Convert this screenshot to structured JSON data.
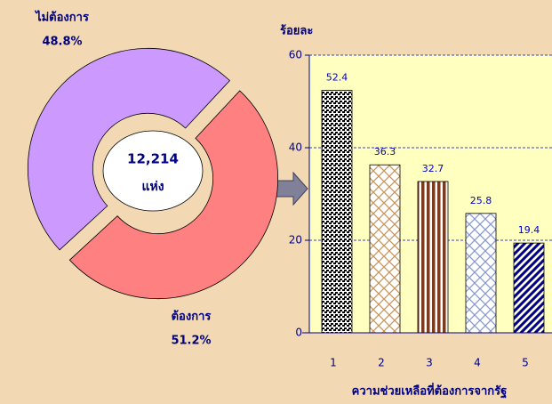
{
  "chart_data": [
    {
      "type": "pie",
      "categories": [
        "ไม่ต้องการ",
        "ต้องการ"
      ],
      "values": [
        48.8,
        51.2
      ],
      "value_labels": [
        "48.8%",
        "51.2%"
      ],
      "colors": [
        "#cc99ff",
        "#ff8080"
      ],
      "center_text": "12,214",
      "center_subtext": "แห่ง"
    },
    {
      "type": "bar",
      "ylabel": "ร้อยละ",
      "xlabel": "ความช่วยเหลือที่ต้องการจากรัฐ",
      "categories": [
        "1",
        "2",
        "3",
        "4",
        "5"
      ],
      "values": [
        52.4,
        36.3,
        32.7,
        25.8,
        19.4
      ],
      "colors": [
        "#000000",
        "#c8955a",
        "#7a3b1e",
        "#8899cc",
        "#000080"
      ],
      "ylim": [
        0,
        60
      ],
      "yticks": [
        0,
        20,
        40,
        60
      ],
      "grid": true
    }
  ]
}
